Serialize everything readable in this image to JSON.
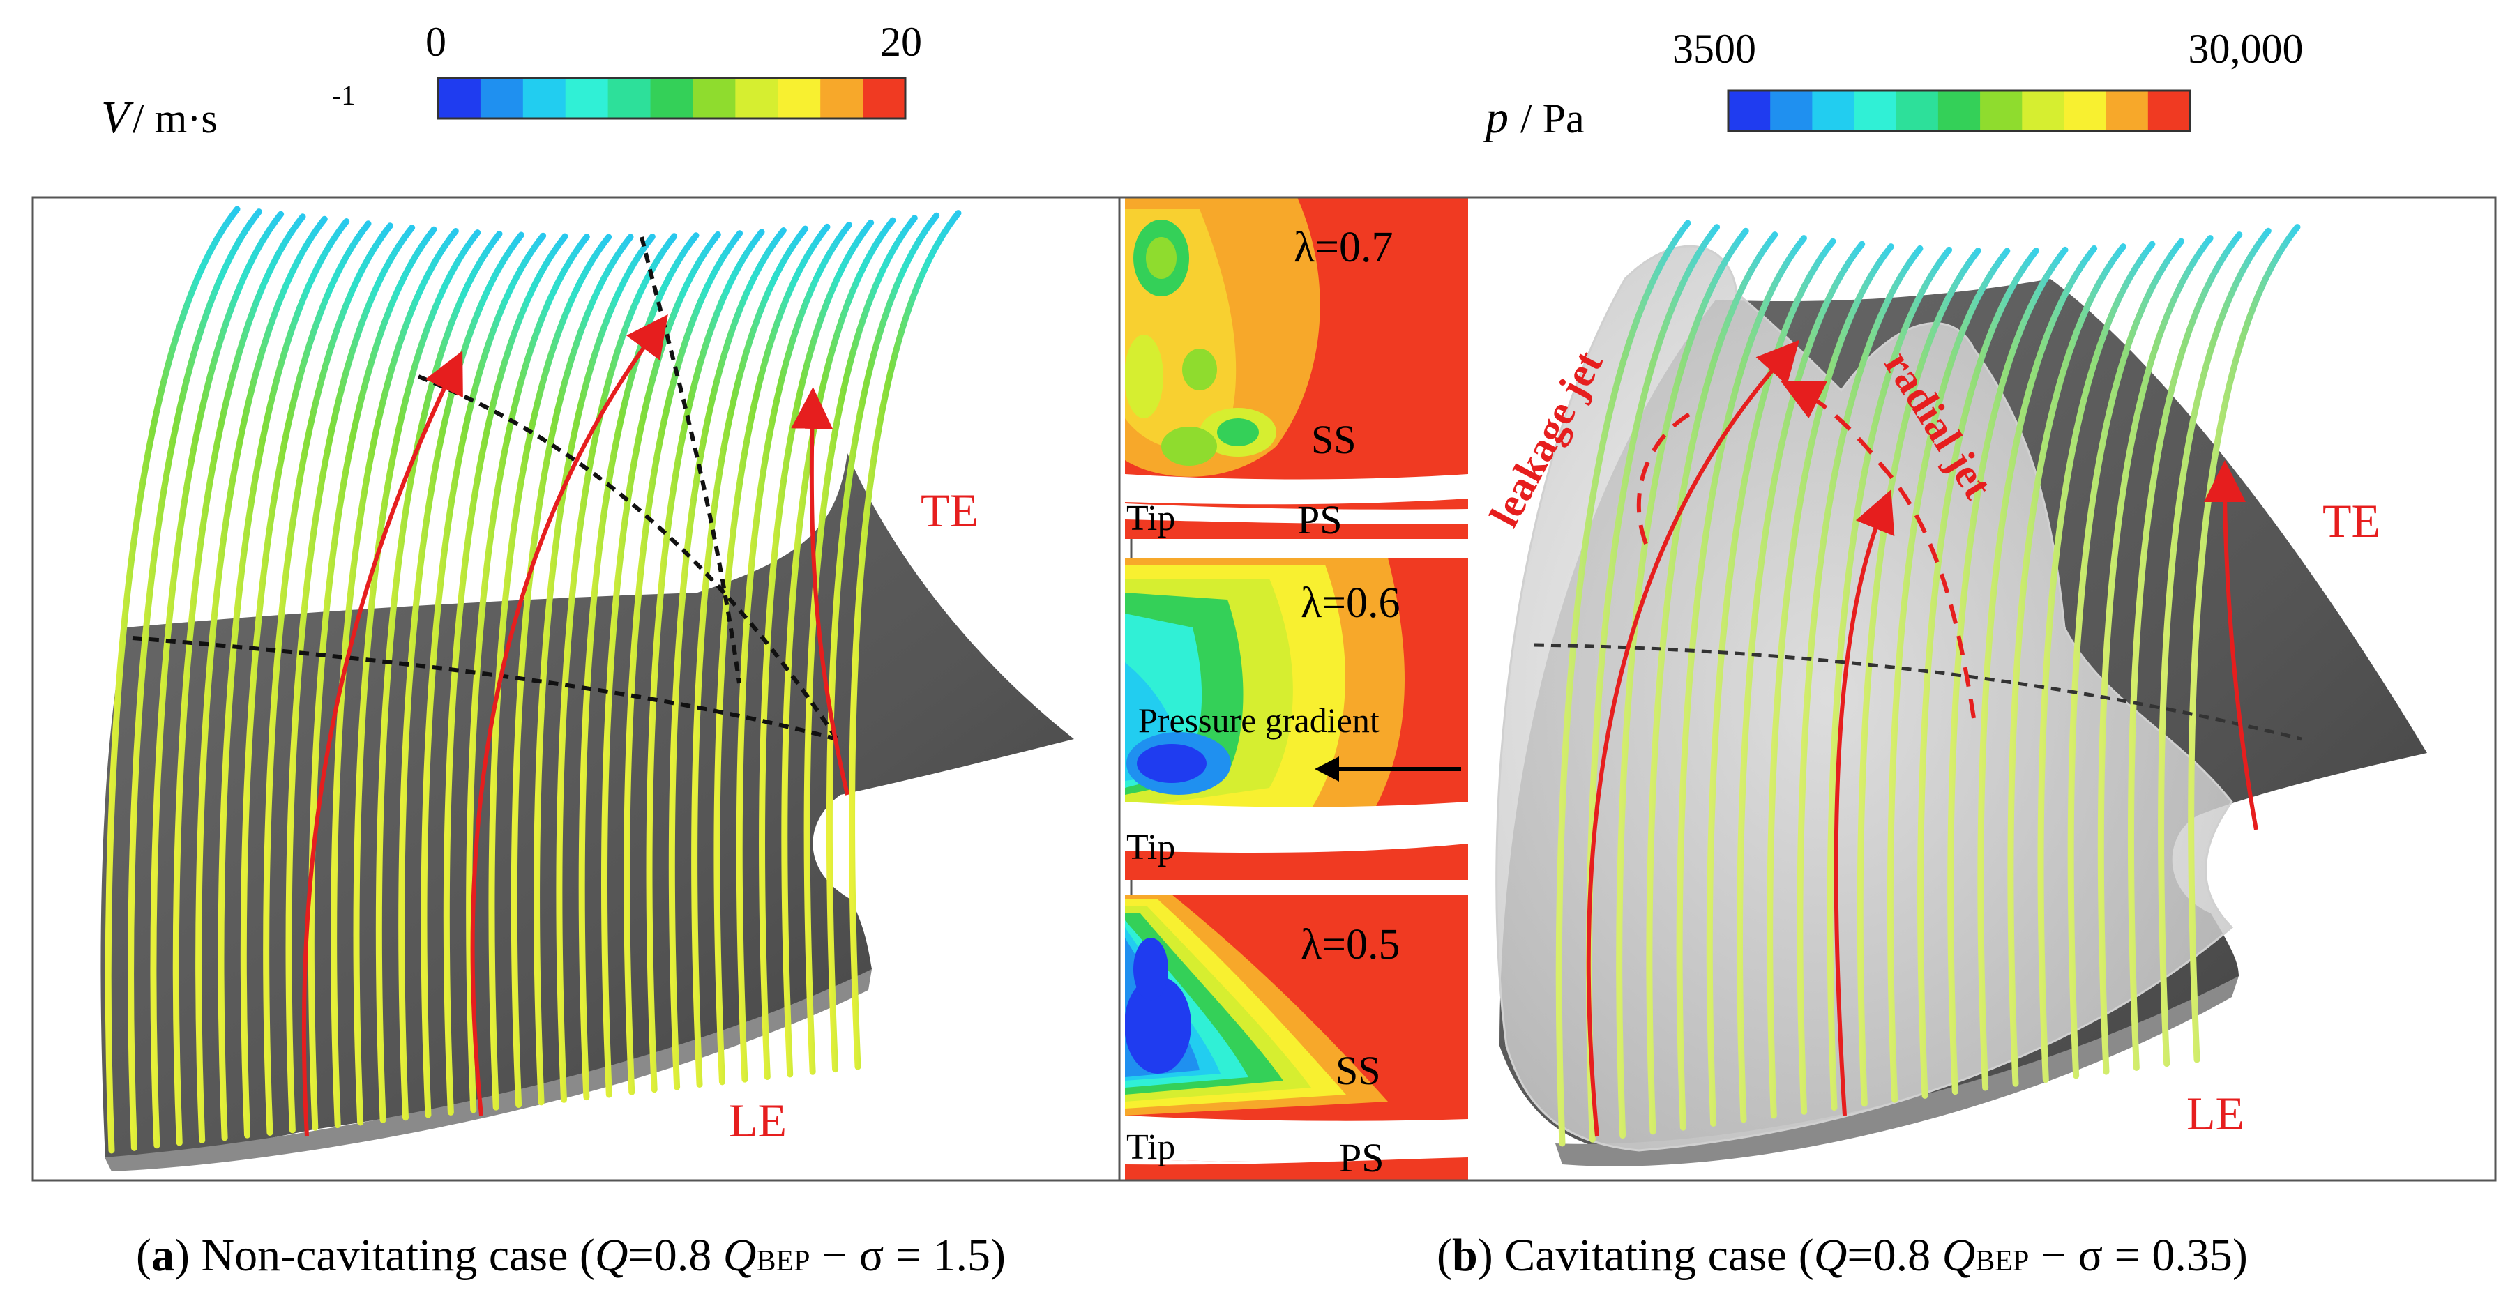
{
  "legend_left": {
    "symbol": "V",
    "unit_text": "/ m·s",
    "unit_exp": "-1",
    "min": "0",
    "max": "20",
    "colors": [
      "#1f3cf0",
      "#1f90f0",
      "#22cdf0",
      "#30f0d6",
      "#2de09a",
      "#34d058",
      "#8fdc2e",
      "#d6ee30",
      "#f8f030",
      "#f7a82a",
      "#f03a22"
    ]
  },
  "legend_right": {
    "symbol": "p",
    "unit_text": "/ Pa",
    "min": "3500",
    "max": "30,000",
    "colors": [
      "#1f3cf0",
      "#1f90f0",
      "#22cdf0",
      "#30f0d6",
      "#2de09a",
      "#34d058",
      "#8fdc2e",
      "#d6ee30",
      "#f8f030",
      "#f7a82a",
      "#f03a22"
    ]
  },
  "panel_a": {
    "labels": {
      "te": "TE",
      "le": "LE"
    },
    "caption": {
      "letter": "a",
      "text": " Non-cavitating case (",
      "q": "Q",
      "eq": "=0.8 ",
      "qbep": "Q",
      "sub": "BEP",
      "tail": " − σ = 1.5)"
    }
  },
  "panel_b": {
    "labels": {
      "te": "TE",
      "le": "LE",
      "leakage": "leakage jet",
      "radial": "radial jet"
    },
    "caption": {
      "letter": "b",
      "text": " Cavitating case (",
      "q": "Q",
      "eq": "=0.8 ",
      "qbep": "Q",
      "sub": "BEP",
      "tail": " − σ = 0.35)"
    }
  },
  "insets": [
    {
      "lambda": "λ=0.7",
      "ss": "SS",
      "tip": "Tip",
      "ps": "PS"
    },
    {
      "lambda": "λ=0.6",
      "gradient": "Pressure gradient",
      "tip": "Tip"
    },
    {
      "lambda": "λ=0.5",
      "ss": "SS",
      "tip": "Tip",
      "ps": "PS"
    }
  ]
}
